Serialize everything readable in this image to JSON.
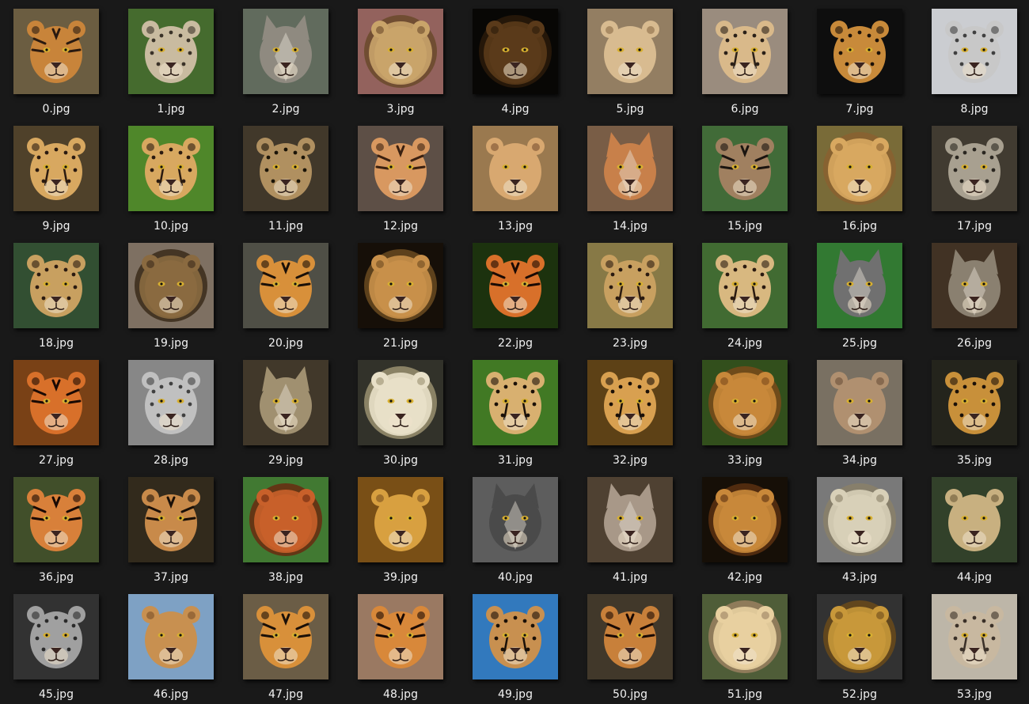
{
  "files": [
    {
      "name": "0.jpg",
      "animal": "tiger-icon",
      "bg": "#7a6a4a",
      "fur": "#c8843a",
      "stripe": "#2a1a10"
    },
    {
      "name": "1.jpg",
      "animal": "snow-leopard-icon",
      "bg": "#4f7a35",
      "fur": "#c9bba0",
      "stripe": "#3a3228"
    },
    {
      "name": "2.jpg",
      "animal": "wolf-icon",
      "bg": "#6f7a6a",
      "fur": "#8f8a80",
      "stripe": "#3a3630"
    },
    {
      "name": "3.jpg",
      "animal": "lion-icon",
      "bg": "#a8706a",
      "fur": "#c9a46a",
      "stripe": "#6a4a2a"
    },
    {
      "name": "4.jpg",
      "animal": "lion-icon",
      "bg": "#0a0806",
      "fur": "#5a3a1a",
      "stripe": "#2a1a0a"
    },
    {
      "name": "5.jpg",
      "animal": "lioness-icon",
      "bg": "#a89070",
      "fur": "#d8bb90",
      "stripe": "#8a6a48"
    },
    {
      "name": "6.jpg",
      "animal": "cheetah-icon",
      "bg": "#b0a090",
      "fur": "#d9b98a",
      "stripe": "#2a2018"
    },
    {
      "name": "7.jpg",
      "animal": "leopard-icon",
      "bg": "#101010",
      "fur": "#c88a3a",
      "stripe": "#1a1008"
    },
    {
      "name": "8.jpg",
      "animal": "snow-leopard-icon",
      "bg": "#e8eaee",
      "fur": "#c8c8c8",
      "stripe": "#404040"
    },
    {
      "name": "9.jpg",
      "animal": "cheetah-icon",
      "bg": "#5a4a30",
      "fur": "#d8a860",
      "stripe": "#2a1a10"
    },
    {
      "name": "10.jpg",
      "animal": "cheetah-icon",
      "bg": "#5a9a30",
      "fur": "#d8a860",
      "stripe": "#2a1a10"
    },
    {
      "name": "11.jpg",
      "animal": "jaguar-icon",
      "bg": "#4a4030",
      "fur": "#b09060",
      "stripe": "#1a1408"
    },
    {
      "name": "12.jpg",
      "animal": "tiger-icon",
      "bg": "#6a5a50",
      "fur": "#d89860",
      "stripe": "#3a2010"
    },
    {
      "name": "13.jpg",
      "animal": "lioness-icon",
      "bg": "#b08a5a",
      "fur": "#d8a870",
      "stripe": "#7a5030"
    },
    {
      "name": "14.jpg",
      "animal": "fox-icon",
      "bg": "#8a6a50",
      "fur": "#c8804a",
      "stripe": "#4a2a1a"
    },
    {
      "name": "15.jpg",
      "animal": "tiger-icon",
      "bg": "#4a7a40",
      "fur": "#a08060",
      "stripe": "#1a1410"
    },
    {
      "name": "16.jpg",
      "animal": "lion-icon",
      "bg": "#8a7a40",
      "fur": "#d8a860",
      "stripe": "#8a6030"
    },
    {
      "name": "17.jpg",
      "animal": "snow-leopard-icon",
      "bg": "#4a4438",
      "fur": "#a8a090",
      "stripe": "#2a2620"
    },
    {
      "name": "18.jpg",
      "animal": "leopard-icon",
      "bg": "#3a5a3a",
      "fur": "#c8a060",
      "stripe": "#2a1a10"
    },
    {
      "name": "19.jpg",
      "animal": "lion-icon",
      "bg": "#908070",
      "fur": "#8a6a40",
      "stripe": "#3a2a1a"
    },
    {
      "name": "20.jpg",
      "animal": "tiger-icon",
      "bg": "#5a5a50",
      "fur": "#d8903a",
      "stripe": "#1a1008"
    },
    {
      "name": "21.jpg",
      "animal": "lion-icon",
      "bg": "#1a120a",
      "fur": "#c8904a",
      "stripe": "#6a4a20"
    },
    {
      "name": "22.jpg",
      "animal": "tiger-icon",
      "bg": "#203a10",
      "fur": "#d8702a",
      "stripe": "#1a0a04"
    },
    {
      "name": "23.jpg",
      "animal": "cheetah-icon",
      "bg": "#9a8a50",
      "fur": "#c8a060",
      "stripe": "#2a1a10"
    },
    {
      "name": "24.jpg",
      "animal": "cheetah-icon",
      "bg": "#4a7a3a",
      "fur": "#d8b880",
      "stripe": "#2a1a10"
    },
    {
      "name": "25.jpg",
      "animal": "wolf-icon",
      "bg": "#3a8a3a",
      "fur": "#707070",
      "stripe": "#202020"
    },
    {
      "name": "26.jpg",
      "animal": "wolf-icon",
      "bg": "#4a3a2a",
      "fur": "#8a8070",
      "stripe": "#3a3028"
    },
    {
      "name": "27.jpg",
      "animal": "tiger-icon",
      "bg": "#8a4a1a",
      "fur": "#d8702a",
      "stripe": "#1a0a04"
    },
    {
      "name": "28.jpg",
      "animal": "snow-leopard-icon",
      "bg": "#9a9a9a",
      "fur": "#c0c0c0",
      "stripe": "#404040"
    },
    {
      "name": "29.jpg",
      "animal": "wolf-icon",
      "bg": "#4a4030",
      "fur": "#a09070",
      "stripe": "#3a3020"
    },
    {
      "name": "30.jpg",
      "animal": "white-lion-icon",
      "bg": "#3a3a30",
      "fur": "#e8e0c8",
      "stripe": "#9a9070"
    },
    {
      "name": "31.jpg",
      "animal": "cheetah-icon",
      "bg": "#4a8a2a",
      "fur": "#d8b070",
      "stripe": "#1a1008"
    },
    {
      "name": "32.jpg",
      "animal": "cheetah-icon",
      "bg": "#6a4a1a",
      "fur": "#d8a050",
      "stripe": "#1a1008"
    },
    {
      "name": "33.jpg",
      "animal": "lion-icon",
      "bg": "#3a5a20",
      "fur": "#c8883a",
      "stripe": "#7a4a1a"
    },
    {
      "name": "34.jpg",
      "animal": "lioness-icon",
      "bg": "#8a8070",
      "fur": "#b09070",
      "stripe": "#6a5038"
    },
    {
      "name": "35.jpg",
      "animal": "jaguar-icon",
      "bg": "#2a2a20",
      "fur": "#c8903a",
      "stripe": "#1a1008"
    },
    {
      "name": "36.jpg",
      "animal": "tiger-icon",
      "bg": "#4a5a30",
      "fur": "#d8803a",
      "stripe": "#1a0a04"
    },
    {
      "name": "37.jpg",
      "animal": "tiger-icon",
      "bg": "#3a3020",
      "fur": "#c88a4a",
      "stripe": "#1a1008"
    },
    {
      "name": "38.jpg",
      "animal": "lion-icon",
      "bg": "#4a8a3a",
      "fur": "#c8602a",
      "stripe": "#6a2a10"
    },
    {
      "name": "39.jpg",
      "animal": "lioness-icon",
      "bg": "#8a5a1a",
      "fur": "#d8a040",
      "stripe": "#7a5020"
    },
    {
      "name": "40.jpg",
      "animal": "wolf-icon",
      "bg": "#6a6a6a",
      "fur": "#4a4a4a",
      "stripe": "#1a1a1a"
    },
    {
      "name": "41.jpg",
      "animal": "wolf-icon",
      "bg": "#5a4a3a",
      "fur": "#a89888",
      "stripe": "#3a3028"
    },
    {
      "name": "42.jpg",
      "animal": "lion-icon",
      "bg": "#1a1208",
      "fur": "#c8883a",
      "stripe": "#5a3010"
    },
    {
      "name": "43.jpg",
      "animal": "white-lion-icon",
      "bg": "#8a8a8a",
      "fur": "#d8d0b8",
      "stripe": "#8a8068"
    },
    {
      "name": "44.jpg",
      "animal": "lioness-icon",
      "bg": "#3a4a30",
      "fur": "#c8b080",
      "stripe": "#6a5a38"
    },
    {
      "name": "45.jpg",
      "animal": "snow-leopard-icon",
      "bg": "#3a3a3a",
      "fur": "#a0a0a0",
      "stripe": "#2a2a2a"
    },
    {
      "name": "46.jpg",
      "animal": "lioness-icon",
      "bg": "#90b8e0",
      "fur": "#c89050",
      "stripe": "#7a5028"
    },
    {
      "name": "47.jpg",
      "animal": "tiger-icon",
      "bg": "#7a6a50",
      "fur": "#d8903a",
      "stripe": "#1a1008"
    },
    {
      "name": "48.jpg",
      "animal": "tiger-icon",
      "bg": "#b08a70",
      "fur": "#d8883a",
      "stripe": "#1a0a04"
    },
    {
      "name": "49.jpg",
      "animal": "cheetah-icon",
      "bg": "#3a8ad8",
      "fur": "#c89050",
      "stripe": "#1a1008"
    },
    {
      "name": "50.jpg",
      "animal": "tiger-icon",
      "bg": "#4a4030",
      "fur": "#c8803a",
      "stripe": "#1a0a04"
    },
    {
      "name": "51.jpg",
      "animal": "white-lion-icon",
      "bg": "#5a6a40",
      "fur": "#e8d0a0",
      "stripe": "#9a8060"
    },
    {
      "name": "52.jpg",
      "animal": "lion-icon",
      "bg": "#3a3a3a",
      "fur": "#c8983a",
      "stripe": "#6a4a1a"
    },
    {
      "name": "53.jpg",
      "animal": "cheetah-icon",
      "bg": "#d8d0c0",
      "fur": "#c8b8a0",
      "stripe": "#3a3028"
    }
  ]
}
